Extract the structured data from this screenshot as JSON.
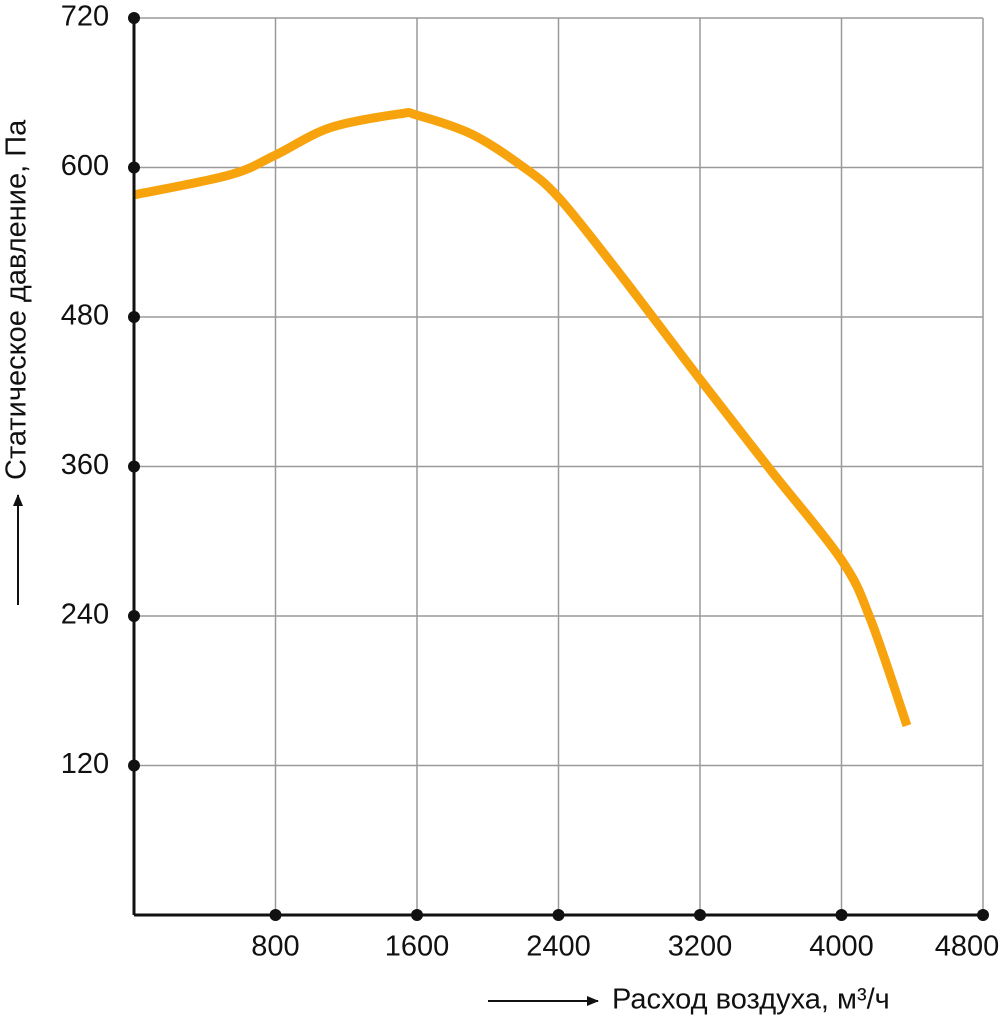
{
  "chart_data": {
    "type": "line",
    "x_label": "Расход воздуха, м³/ч",
    "y_label": "Статическое давление, Па",
    "x": [
      0,
      540,
      800,
      1110,
      1500,
      1600,
      1905,
      2185,
      2400,
      2750,
      3200,
      3600,
      4000,
      4165,
      4370
    ],
    "series": [
      {
        "name": "Статическое давление",
        "color": "#f7a30d",
        "values": [
          578,
          594,
          610,
          632,
          643,
          642,
          627,
          602,
          576,
          514,
          430,
          357,
          285,
          237,
          152
        ]
      }
    ],
    "xlim": [
      0,
      4800
    ],
    "xticks": [
      800,
      1600,
      2400,
      3200,
      4000,
      4800
    ],
    "ylim": [
      0,
      720
    ],
    "yticks": [
      120,
      240,
      360,
      480,
      600,
      720
    ],
    "grid": true
  }
}
